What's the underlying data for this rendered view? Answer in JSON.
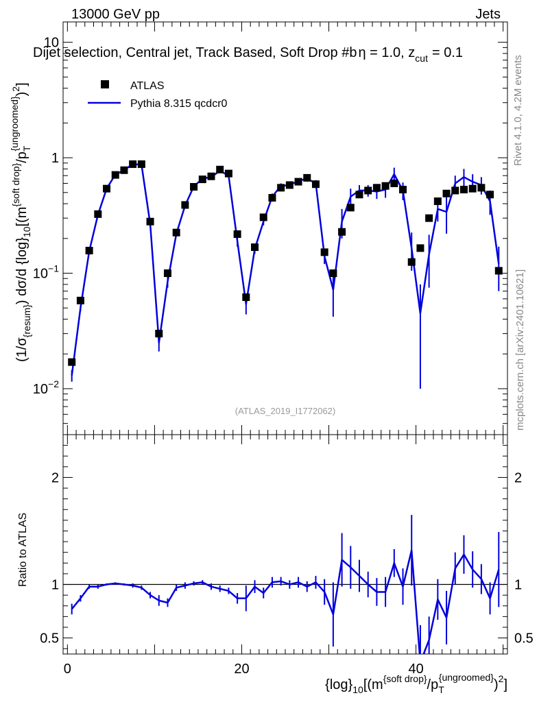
{
  "header": {
    "energy_label": "13000 GeV pp",
    "category_label": "Jets",
    "selection_title": "Dijet selection, Central jet, Track Based, Soft Drop #b",
    "eta_text": "η = 1.0, z",
    "zcut_sub": "cut",
    "zcut_value": "= 0.1"
  },
  "side_labels": {
    "rivet": "Rivet 4.1.0,  4.2M events",
    "mcplots": "mcplots.cern.ch [arXiv:2401.10621]"
  },
  "watermark": "(ATLAS_2019_I1772062)",
  "legend": {
    "data_label": "ATLAS",
    "mc_label": "Pythia 8.315 qcdcr0"
  },
  "colors": {
    "data": "#000000",
    "mc": "#0000dd"
  },
  "main_ylabel": "(1/σ{resum}) dσ/d {log}10[(m{soft drop}/pT{ungroomed})2]",
  "ratio_ylabel": "Ratio to ATLAS",
  "xlabel": "{log}10[(m{soft drop}/pT{ungroomed})2]",
  "chart_data": [
    {
      "type": "scatter",
      "panel": "main",
      "yscale": "log",
      "xlim": [
        -0.5,
        50.5
      ],
      "ylim": [
        0.004,
        15
      ],
      "xticks": [
        0,
        20,
        40
      ],
      "yticks": [
        {
          "value": 0.01,
          "base": "10",
          "exp": "−2"
        },
        {
          "value": 0.1,
          "base": "10",
          "exp": "−1"
        },
        {
          "value": 1,
          "label": "1"
        },
        {
          "value": 10,
          "label": "10"
        }
      ],
      "x": [
        0.5,
        1.5,
        2.5,
        3.5,
        4.5,
        5.5,
        6.5,
        7.5,
        8.5,
        9.5,
        10.5,
        11.5,
        12.5,
        13.5,
        14.5,
        15.5,
        16.5,
        17.5,
        18.5,
        19.5,
        20.5,
        21.5,
        22.5,
        23.5,
        24.5,
        25.5,
        26.5,
        27.5,
        28.5,
        29.5,
        30.5,
        31.5,
        32.5,
        33.5,
        34.5,
        35.5,
        36.5,
        37.5,
        38.5,
        39.5,
        40.5,
        41.5,
        42.5,
        43.5,
        44.5,
        45.5,
        46.5,
        47.5,
        48.5,
        49.5
      ],
      "series": [
        {
          "name": "ATLAS",
          "marker": "square",
          "values": [
            0.017,
            0.058,
            0.157,
            0.325,
            0.54,
            0.71,
            0.78,
            0.88,
            0.88,
            0.28,
            0.03,
            0.1,
            0.225,
            0.39,
            0.56,
            0.65,
            0.69,
            0.79,
            0.73,
            0.218,
            0.062,
            0.168,
            0.305,
            0.45,
            0.55,
            0.58,
            0.62,
            0.67,
            0.59,
            0.152,
            0.1,
            0.228,
            0.37,
            0.48,
            0.52,
            0.55,
            0.57,
            0.6,
            0.53,
            0.125,
            0.165,
            0.3,
            0.42,
            0.49,
            0.52,
            0.53,
            0.54,
            0.55,
            0.48,
            0.105
          ]
        },
        {
          "name": "Pythia 8.315 qcdcr0",
          "marker": "line",
          "values": [
            0.013,
            0.05,
            0.155,
            0.32,
            0.54,
            0.715,
            0.78,
            0.88,
            0.87,
            0.265,
            0.025,
            0.085,
            0.22,
            0.385,
            0.565,
            0.66,
            0.68,
            0.77,
            0.7,
            0.19,
            0.054,
            0.162,
            0.28,
            0.46,
            0.57,
            0.58,
            0.63,
            0.66,
            0.6,
            0.14,
            0.072,
            0.28,
            0.46,
            0.52,
            0.52,
            0.51,
            0.53,
            0.72,
            0.52,
            0.165,
            0.045,
            0.145,
            0.36,
            0.34,
            0.6,
            0.68,
            0.62,
            0.58,
            0.42,
            0.12
          ],
          "errors": [
            0.0015,
            0.003,
            0.005,
            0.008,
            0.012,
            0.015,
            0.015,
            0.02,
            0.02,
            0.015,
            0.004,
            0.01,
            0.01,
            0.015,
            0.02,
            0.02,
            0.02,
            0.025,
            0.025,
            0.02,
            0.01,
            0.015,
            0.02,
            0.03,
            0.03,
            0.03,
            0.035,
            0.04,
            0.04,
            0.02,
            0.03,
            0.08,
            0.08,
            0.06,
            0.06,
            0.07,
            0.08,
            0.1,
            0.09,
            0.06,
            0.035,
            0.07,
            0.08,
            0.12,
            0.1,
            0.12,
            0.1,
            0.1,
            0.1,
            0.05
          ]
        }
      ]
    },
    {
      "type": "line",
      "panel": "ratio",
      "title": "Ratio to ATLAS",
      "xlim": [
        -0.5,
        50.5
      ],
      "ylim": [
        0.35,
        2.4
      ],
      "yticks": [
        0.5,
        1,
        2
      ],
      "reference": 1,
      "x": [
        0.5,
        1.5,
        2.5,
        3.5,
        4.5,
        5.5,
        6.5,
        7.5,
        8.5,
        9.5,
        10.5,
        11.5,
        12.5,
        13.5,
        14.5,
        15.5,
        16.5,
        17.5,
        18.5,
        19.5,
        20.5,
        21.5,
        22.5,
        23.5,
        24.5,
        25.5,
        26.5,
        27.5,
        28.5,
        29.5,
        30.5,
        31.5,
        32.5,
        33.5,
        34.5,
        35.5,
        36.5,
        37.5,
        38.5,
        39.5,
        40.5,
        41.5,
        42.5,
        43.5,
        44.5,
        45.5,
        46.5,
        47.5,
        48.5,
        49.5
      ],
      "series": [
        {
          "name": "Pythia 8.315 qcdcr0",
          "values": [
            0.77,
            0.87,
            0.98,
            0.98,
            1.0,
            1.01,
            1.0,
            0.99,
            0.97,
            0.9,
            0.85,
            0.83,
            0.97,
            0.99,
            1.01,
            1.02,
            0.98,
            0.96,
            0.94,
            0.87,
            0.87,
            0.98,
            0.92,
            1.02,
            1.03,
            1.0,
            1.02,
            0.98,
            1.02,
            0.93,
            0.72,
            1.23,
            1.16,
            1.08,
            1.0,
            0.93,
            0.93,
            1.2,
            0.98,
            1.32,
            0.27,
            0.48,
            0.86,
            0.69,
            1.15,
            1.28,
            1.14,
            1.05,
            0.87,
            1.14
          ],
          "errors": [
            0.05,
            0.03,
            0.02,
            0.02,
            0.01,
            0.01,
            0.01,
            0.02,
            0.02,
            0.03,
            0.05,
            0.04,
            0.03,
            0.03,
            0.02,
            0.02,
            0.03,
            0.03,
            0.03,
            0.05,
            0.12,
            0.06,
            0.05,
            0.05,
            0.04,
            0.04,
            0.05,
            0.05,
            0.06,
            0.12,
            0.3,
            0.25,
            0.2,
            0.15,
            0.12,
            0.13,
            0.14,
            0.13,
            0.17,
            0.33,
            0.35,
            0.22,
            0.19,
            0.25,
            0.15,
            0.18,
            0.17,
            0.14,
            0.15,
            0.35
          ]
        }
      ]
    }
  ]
}
